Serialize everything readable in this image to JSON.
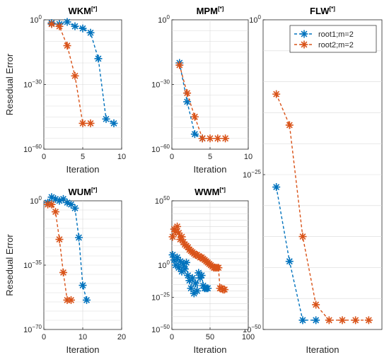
{
  "colors": {
    "root1": "#0072BD",
    "root2": "#D95319",
    "axis": "#262626",
    "grid": "#d9d9d9"
  },
  "chart_data": [
    {
      "id": "wkm",
      "type": "line",
      "title": "WKM",
      "title_sup": "[*]",
      "xlabel": "Iteration",
      "ylabel": "Resedual Error",
      "xlim": [
        0,
        10
      ],
      "y_exponent_range": [
        -60,
        0
      ],
      "yscale": "log",
      "xticks": [
        {
          "v": 0,
          "label": "0"
        },
        {
          "v": 5,
          "label": "5"
        },
        {
          "v": 10,
          "label": "10"
        }
      ],
      "yticks": [
        {
          "e": 0,
          "base": "10",
          "exp": "0"
        },
        {
          "e": -30,
          "base": "10",
          "exp": "−30"
        },
        {
          "e": -60,
          "base": "10",
          "exp": "−60"
        }
      ],
      "series": [
        {
          "key": "root1",
          "points": [
            [
              1,
              -1.5
            ],
            [
              2,
              -2
            ],
            [
              3,
              -1
            ],
            [
              4,
              -3
            ],
            [
              5,
              -4
            ],
            [
              6,
              -6
            ],
            [
              7,
              -18
            ],
            [
              8,
              -46
            ],
            [
              9,
              -48
            ]
          ]
        },
        {
          "key": "root2",
          "points": [
            [
              1,
              -2
            ],
            [
              2,
              -3
            ],
            [
              3,
              -12
            ],
            [
              4,
              -26
            ],
            [
              5,
              -48
            ],
            [
              6,
              -48
            ]
          ]
        }
      ]
    },
    {
      "id": "mpm",
      "type": "line",
      "title": "MPM",
      "title_sup": "[*]",
      "xlabel": "Iteration",
      "ylabel": "",
      "xlim": [
        0,
        10
      ],
      "y_exponent_range": [
        -60,
        0
      ],
      "yscale": "log",
      "xticks": [
        {
          "v": 0,
          "label": "0"
        },
        {
          "v": 5,
          "label": "5"
        },
        {
          "v": 10,
          "label": "10"
        }
      ],
      "yticks": [
        {
          "e": 0,
          "base": "10",
          "exp": "0"
        },
        {
          "e": -30,
          "base": "10",
          "exp": "−30"
        },
        {
          "e": -60,
          "base": "10",
          "exp": "−60"
        }
      ],
      "series": [
        {
          "key": "root1",
          "points": [
            [
              1,
              -20
            ],
            [
              2,
              -38
            ],
            [
              3,
              -53
            ],
            [
              4,
              -55
            ]
          ]
        },
        {
          "key": "root2",
          "points": [
            [
              1,
              -21
            ],
            [
              2,
              -34
            ],
            [
              3,
              -45
            ],
            [
              4,
              -55
            ],
            [
              5,
              -55
            ],
            [
              6,
              -55
            ],
            [
              7,
              -55
            ]
          ]
        }
      ]
    },
    {
      "id": "flw",
      "type": "line",
      "title": "FLW",
      "title_sup": "[*]",
      "xlabel": "Iteration",
      "ylabel": "",
      "xlim": [
        0,
        9
      ],
      "y_exponent_range": [
        -50,
        0
      ],
      "yscale": "log",
      "xticks": [],
      "yticks": [
        {
          "e": 0,
          "base": "10",
          "exp": "0"
        },
        {
          "e": -25,
          "base": "10",
          "exp": "−25"
        },
        {
          "e": -50,
          "base": "10",
          "exp": "−50"
        }
      ],
      "legend": {
        "position": "top-right",
        "entries": [
          {
            "key": "root1",
            "label": "root1;m=2"
          },
          {
            "key": "root2",
            "label": "root2;m=2"
          }
        ]
      },
      "series": [
        {
          "key": "root1",
          "points": [
            [
              1,
              -27
            ],
            [
              2,
              -39
            ],
            [
              3,
              -48.5
            ],
            [
              4,
              -48.5
            ]
          ]
        },
        {
          "key": "root2",
          "points": [
            [
              1,
              -12
            ],
            [
              2,
              -17
            ],
            [
              3,
              -35
            ],
            [
              4,
              -46
            ],
            [
              5,
              -48.5
            ],
            [
              6,
              -48.5
            ],
            [
              7,
              -48.5
            ],
            [
              8,
              -48.5
            ]
          ]
        }
      ]
    },
    {
      "id": "wum",
      "type": "line",
      "title": "WUM",
      "title_sup": "[*]",
      "xlabel": "Iteration",
      "ylabel": "Resedual Error",
      "xlim": [
        0,
        20
      ],
      "y_exponent_range": [
        -70,
        0
      ],
      "yscale": "log",
      "xticks": [
        {
          "v": 0,
          "label": "0"
        },
        {
          "v": 10,
          "label": "10"
        },
        {
          "v": 20,
          "label": "20"
        }
      ],
      "yticks": [
        {
          "e": 0,
          "base": "10",
          "exp": "0"
        },
        {
          "e": -35,
          "base": "10",
          "exp": "−35"
        },
        {
          "e": -70,
          "base": "10",
          "exp": "−70"
        }
      ],
      "series": [
        {
          "key": "root1",
          "points": [
            [
              1,
              -1
            ],
            [
              2,
              2
            ],
            [
              3,
              1
            ],
            [
              4,
              0
            ],
            [
              5,
              1
            ],
            [
              6,
              -1
            ],
            [
              7,
              -2
            ],
            [
              8,
              -4
            ],
            [
              9,
              -20
            ],
            [
              10,
              -46
            ],
            [
              11,
              -54
            ]
          ]
        },
        {
          "key": "root2",
          "points": [
            [
              1,
              -2
            ],
            [
              2,
              -2
            ],
            [
              3,
              -6
            ],
            [
              4,
              -21
            ],
            [
              5,
              -39
            ],
            [
              6,
              -54
            ],
            [
              7,
              -54
            ]
          ]
        }
      ]
    },
    {
      "id": "wwm",
      "type": "line",
      "title": "WWM",
      "title_sup": "[*]",
      "xlabel": "Iteration",
      "ylabel": "",
      "xlim": [
        0,
        100
      ],
      "y_exponent_range": [
        -50,
        50
      ],
      "yscale": "log",
      "xticks": [
        {
          "v": 0,
          "label": "0"
        },
        {
          "v": 50,
          "label": "50"
        },
        {
          "v": 100,
          "label": "100"
        }
      ],
      "yticks": [
        {
          "e": 50,
          "base": "10",
          "exp": "50"
        },
        {
          "e": 0,
          "base": "10",
          "exp": "0"
        },
        {
          "e": -25,
          "base": "10",
          "exp": "−25"
        },
        {
          "e": -50,
          "base": "10",
          "exp": "−50"
        }
      ],
      "series": [
        {
          "key": "root1",
          "points": [
            [
              1,
              8
            ],
            [
              3,
              4
            ],
            [
              5,
              0
            ],
            [
              7,
              6
            ],
            [
              9,
              -2
            ],
            [
              11,
              3
            ],
            [
              13,
              -5
            ],
            [
              15,
              1
            ],
            [
              17,
              -3
            ],
            [
              19,
              2
            ],
            [
              21,
              -8
            ],
            [
              23,
              -12
            ],
            [
              25,
              -18
            ],
            [
              27,
              -10
            ],
            [
              29,
              -22
            ],
            [
              31,
              -14
            ],
            [
              33,
              -20
            ],
            [
              35,
              -6
            ],
            [
              37,
              -10
            ],
            [
              39,
              -8
            ],
            [
              41,
              -16
            ],
            [
              43,
              -18
            ],
            [
              45,
              -18
            ],
            [
              47,
              -18
            ]
          ]
        },
        {
          "key": "root2",
          "points": [
            [
              1,
              22
            ],
            [
              3,
              28
            ],
            [
              5,
              26
            ],
            [
              7,
              30
            ],
            [
              9,
              25
            ],
            [
              11,
              20
            ],
            [
              13,
              22
            ],
            [
              15,
              18
            ],
            [
              17,
              16
            ],
            [
              19,
              15
            ],
            [
              21,
              14
            ],
            [
              23,
              12
            ],
            [
              25,
              11
            ],
            [
              27,
              10
            ],
            [
              29,
              9
            ],
            [
              31,
              8
            ],
            [
              33,
              8
            ],
            [
              35,
              7
            ],
            [
              37,
              6
            ],
            [
              39,
              6
            ],
            [
              41,
              5
            ],
            [
              43,
              4
            ],
            [
              45,
              3
            ],
            [
              47,
              2
            ],
            [
              49,
              1
            ],
            [
              51,
              0
            ],
            [
              53,
              -1
            ],
            [
              55,
              -2
            ],
            [
              57,
              -2
            ],
            [
              59,
              -2
            ],
            [
              61,
              -2
            ],
            [
              63,
              -18
            ],
            [
              65,
              -18
            ],
            [
              67,
              -19
            ],
            [
              69,
              -19
            ]
          ]
        }
      ]
    }
  ]
}
